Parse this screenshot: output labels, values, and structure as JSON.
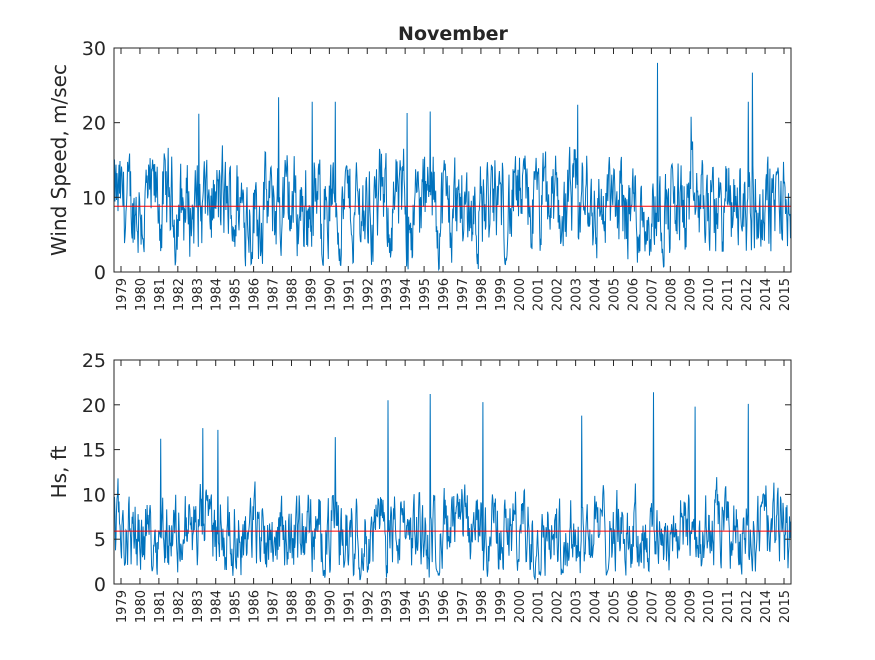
{
  "chart_data": [
    {
      "type": "line",
      "title": "November",
      "xlabel": "",
      "ylabel": "Wind Speed, m/sec",
      "ylim": [
        0,
        30
      ],
      "yticks": [
        0,
        10,
        20,
        30
      ],
      "xticklabels": [
        "1979",
        "1980",
        "1981",
        "1982",
        "1983",
        "1984",
        "1985",
        "1986",
        "1987",
        "1988",
        "1989",
        "1990",
        "1991",
        "1992",
        "1993",
        "1994",
        "1995",
        "1996",
        "1997",
        "1998",
        "1999",
        "2000",
        "2001",
        "2002",
        "2003",
        "2004",
        "2005",
        "2006",
        "2007",
        "2008",
        "2009",
        "2010",
        "2011",
        "2012",
        "2014",
        "2015"
      ],
      "series_color": "#0072BD",
      "mean_line": {
        "value": 8.8,
        "color": "#FF0000"
      },
      "typical_range": [
        1,
        16
      ],
      "peaks": [
        {
          "x": "1983",
          "y": 21.2
        },
        {
          "x": "1987",
          "y": 23.4
        },
        {
          "x": "1989",
          "y": 22.8
        },
        {
          "x": "1990",
          "y": 22.8
        },
        {
          "x": "1994",
          "y": 21.3
        },
        {
          "x": "1995",
          "y": 21.5
        },
        {
          "x": "2003",
          "y": 22.4
        },
        {
          "x": "2007",
          "y": 28.0
        },
        {
          "x": "2009",
          "y": 20.8
        },
        {
          "x": "2012",
          "y": 26.7
        },
        {
          "x": "2012",
          "y": 22.8
        }
      ],
      "grid": false
    },
    {
      "type": "line",
      "title": "",
      "xlabel": "",
      "ylabel": "Hs, ft",
      "ylim": [
        0,
        25
      ],
      "yticks": [
        0,
        5,
        10,
        15,
        20,
        25
      ],
      "xticklabels": [
        "1979",
        "1980",
        "1981",
        "1982",
        "1983",
        "1984",
        "1985",
        "1986",
        "1987",
        "1988",
        "1989",
        "1990",
        "1991",
        "1992",
        "1993",
        "1994",
        "1995",
        "1996",
        "1997",
        "1998",
        "1999",
        "2000",
        "2001",
        "2002",
        "2003",
        "2004",
        "2005",
        "2006",
        "2007",
        "2008",
        "2009",
        "2010",
        "2011",
        "2012",
        "2014",
        "2015"
      ],
      "series_color": "#0072BD",
      "mean_line": {
        "value": 5.9,
        "color": "#FF0000"
      },
      "typical_range": [
        1.5,
        11
      ],
      "peaks": [
        {
          "x": "1981",
          "y": 16.2
        },
        {
          "x": "1983",
          "y": 17.4
        },
        {
          "x": "1984",
          "y": 17.2
        },
        {
          "x": "1990",
          "y": 16.4
        },
        {
          "x": "1993",
          "y": 20.5
        },
        {
          "x": "1995",
          "y": 21.2
        },
        {
          "x": "1998",
          "y": 20.3
        },
        {
          "x": "2003",
          "y": 18.8
        },
        {
          "x": "2007",
          "y": 21.4
        },
        {
          "x": "2009",
          "y": 19.8
        },
        {
          "x": "2012",
          "y": 20.1
        }
      ],
      "grid": false
    }
  ]
}
